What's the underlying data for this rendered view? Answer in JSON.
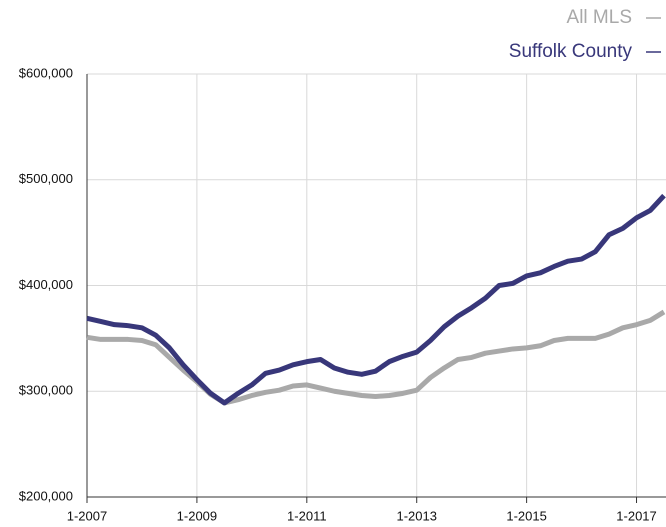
{
  "chart_data": {
    "type": "line",
    "x": [
      "1-2007",
      "4-2007",
      "7-2007",
      "10-2007",
      "1-2008",
      "4-2008",
      "7-2008",
      "10-2008",
      "1-2009",
      "4-2009",
      "7-2009",
      "10-2009",
      "1-2010",
      "4-2010",
      "7-2010",
      "10-2010",
      "1-2011",
      "4-2011",
      "7-2011",
      "10-2011",
      "1-2012",
      "4-2012",
      "7-2012",
      "10-2012",
      "1-2013",
      "4-2013",
      "7-2013",
      "10-2013",
      "1-2014",
      "4-2014",
      "7-2014",
      "10-2014",
      "1-2015",
      "4-2015",
      "7-2015",
      "10-2015",
      "1-2016",
      "4-2016",
      "7-2016",
      "10-2016",
      "1-2017",
      "4-2017",
      "7-2017"
    ],
    "series": [
      {
        "name": "All MLS",
        "color": "#a9a9a9",
        "values": [
          351000,
          349000,
          349000,
          349000,
          348000,
          344000,
          332000,
          320000,
          309000,
          297000,
          289000,
          292000,
          296000,
          299000,
          301000,
          305000,
          306000,
          303000,
          300000,
          298000,
          296000,
          295000,
          296000,
          298000,
          301000,
          313000,
          322000,
          330000,
          332000,
          336000,
          338000,
          340000,
          341000,
          343000,
          348000,
          350000,
          350000,
          350000,
          354000,
          360000,
          363000,
          367000,
          375000
        ]
      },
      {
        "name": "Suffolk County",
        "color": "#38377a",
        "values": [
          369000,
          366000,
          363000,
          362000,
          360000,
          353000,
          341000,
          325000,
          311000,
          298000,
          289000,
          298000,
          306000,
          317000,
          320000,
          325000,
          328000,
          330000,
          322000,
          318000,
          316000,
          319000,
          328000,
          333000,
          337000,
          348000,
          361000,
          371000,
          379000,
          388000,
          400000,
          402000,
          409000,
          412000,
          418000,
          423000,
          425000,
          432000,
          448000,
          454000,
          464000,
          471000,
          485000
        ]
      }
    ],
    "xticks": [
      "1-2007",
      "1-2009",
      "1-2011",
      "1-2013",
      "1-2015",
      "1-2017"
    ],
    "ylim": [
      200000,
      600000
    ],
    "yticks": [
      {
        "value": 200000,
        "label": "$200,000"
      },
      {
        "value": 300000,
        "label": "$300,000"
      },
      {
        "value": 400000,
        "label": "$400,000"
      },
      {
        "value": 500000,
        "label": "$500,000"
      },
      {
        "value": 600000,
        "label": "$600,000"
      }
    ],
    "grid": true
  }
}
